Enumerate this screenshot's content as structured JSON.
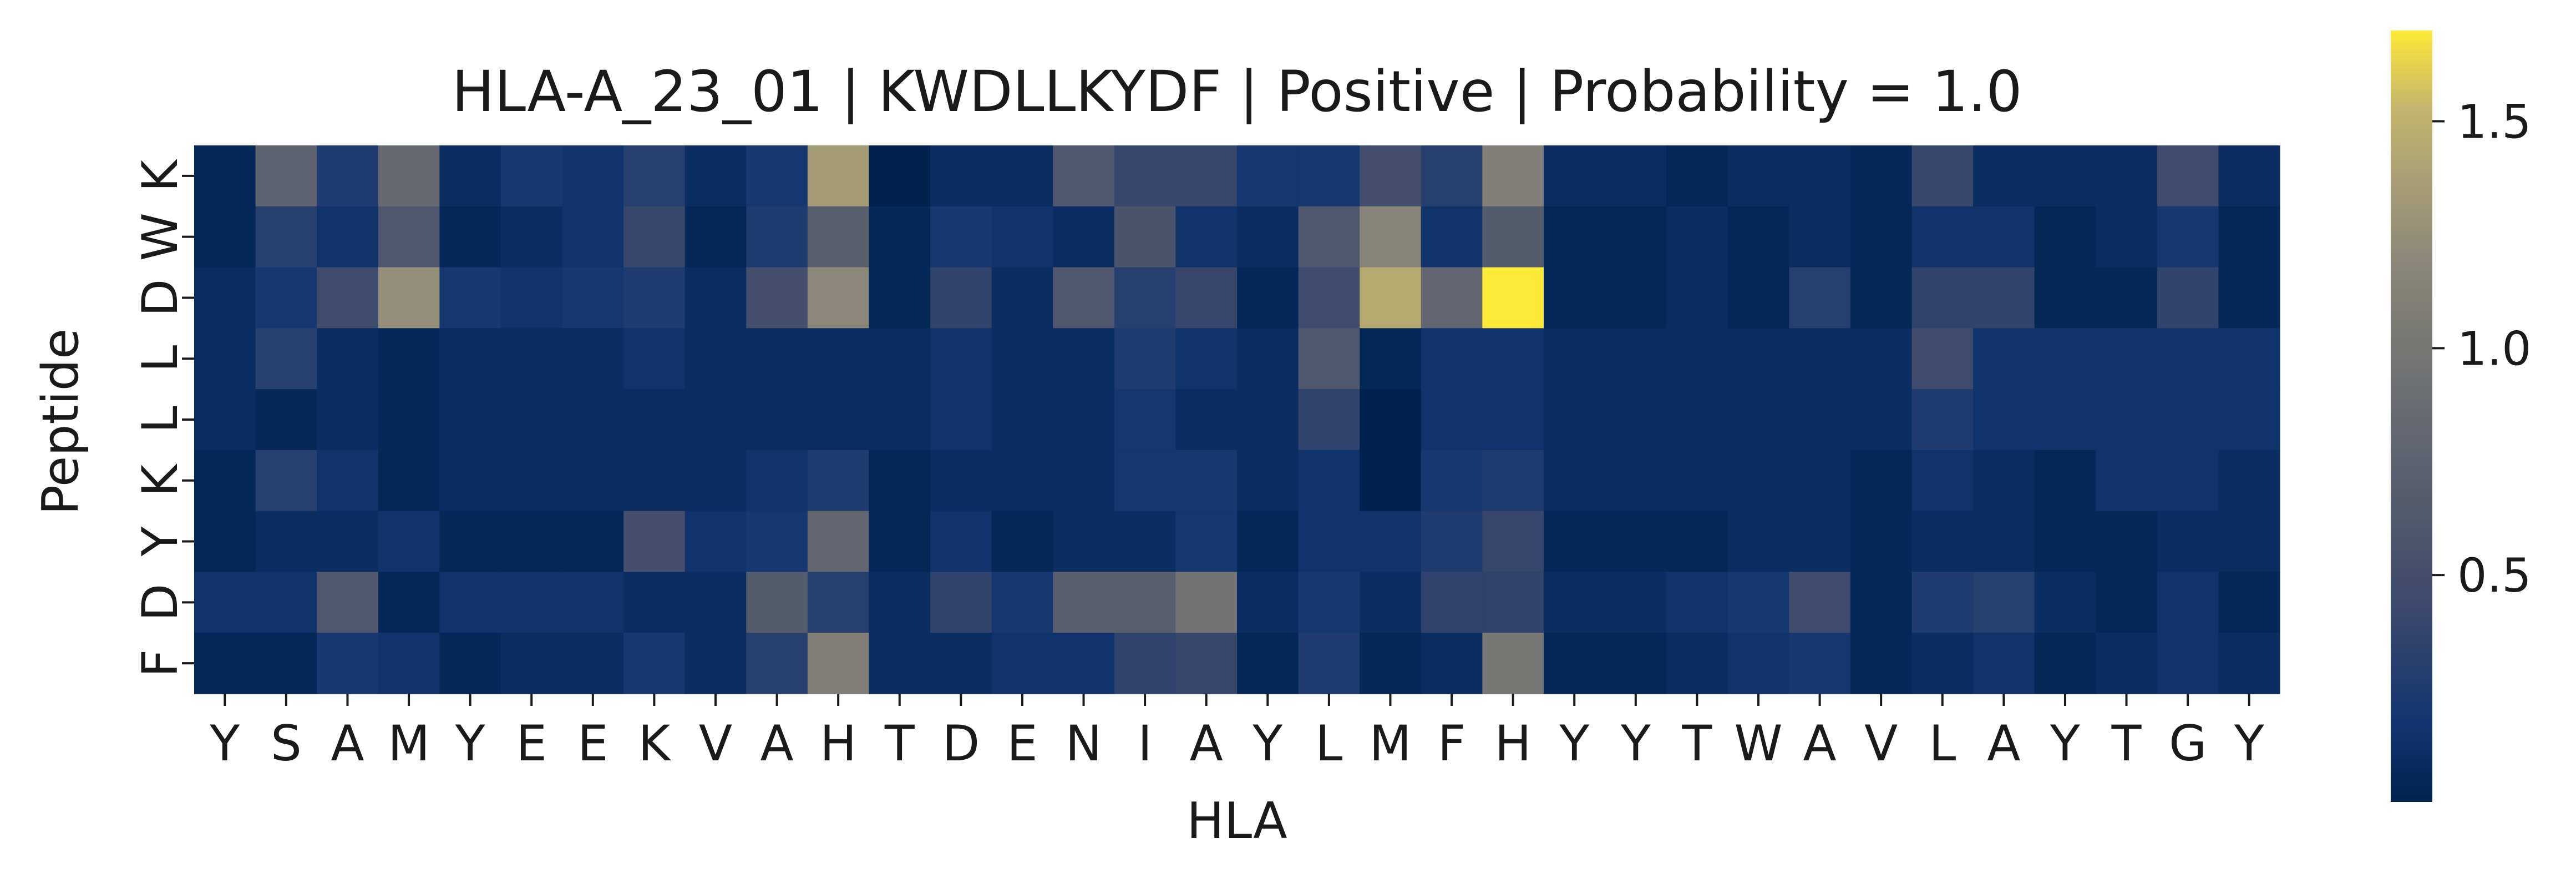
{
  "chart_data": {
    "type": "heatmap",
    "title": "HLA-A_23_01 | KWDLLKYDF | Positive | Probability = 1.0",
    "xlabel": "HLA",
    "ylabel": "Peptide",
    "x_categories": [
      "Y",
      "S",
      "A",
      "M",
      "Y",
      "E",
      "E",
      "K",
      "V",
      "A",
      "H",
      "T",
      "D",
      "E",
      "N",
      "I",
      "A",
      "Y",
      "L",
      "M",
      "F",
      "H",
      "Y",
      "Y",
      "T",
      "W",
      "A",
      "V",
      "L",
      "A",
      "Y",
      "T",
      "G",
      "Y"
    ],
    "y_categories": [
      "K",
      "W",
      "D",
      "L",
      "L",
      "K",
      "Y",
      "D",
      "F"
    ],
    "values": [
      [
        0.05,
        0.75,
        0.25,
        0.85,
        0.1,
        0.2,
        0.15,
        0.3,
        0.1,
        0.2,
        1.35,
        0.0,
        0.1,
        0.1,
        0.6,
        0.4,
        0.4,
        0.2,
        0.2,
        0.5,
        0.3,
        1.1,
        0.1,
        0.1,
        0.05,
        0.1,
        0.1,
        0.05,
        0.4,
        0.1,
        0.1,
        0.1,
        0.45,
        0.1
      ],
      [
        0.05,
        0.3,
        0.15,
        0.6,
        0.05,
        0.1,
        0.15,
        0.4,
        0.05,
        0.25,
        0.7,
        0.05,
        0.2,
        0.15,
        0.1,
        0.55,
        0.15,
        0.1,
        0.6,
        1.15,
        0.15,
        0.65,
        0.05,
        0.05,
        0.1,
        0.05,
        0.1,
        0.05,
        0.15,
        0.15,
        0.05,
        0.1,
        0.2,
        0.05
      ],
      [
        0.1,
        0.2,
        0.45,
        1.25,
        0.2,
        0.15,
        0.2,
        0.25,
        0.1,
        0.5,
        1.2,
        0.05,
        0.35,
        0.1,
        0.6,
        0.3,
        0.4,
        0.05,
        0.45,
        1.45,
        0.8,
        1.7,
        0.05,
        0.05,
        0.1,
        0.05,
        0.3,
        0.05,
        0.35,
        0.35,
        0.05,
        0.05,
        0.35,
        0.05
      ],
      [
        0.1,
        0.3,
        0.1,
        0.05,
        0.1,
        0.1,
        0.1,
        0.15,
        0.1,
        0.1,
        0.1,
        0.1,
        0.15,
        0.1,
        0.1,
        0.25,
        0.15,
        0.1,
        0.6,
        0.05,
        0.15,
        0.15,
        0.1,
        0.1,
        0.1,
        0.1,
        0.1,
        0.1,
        0.45,
        0.15,
        0.15,
        0.15,
        0.15,
        0.15
      ],
      [
        0.1,
        0.05,
        0.1,
        0.05,
        0.1,
        0.1,
        0.1,
        0.1,
        0.1,
        0.1,
        0.1,
        0.1,
        0.15,
        0.1,
        0.1,
        0.2,
        0.1,
        0.1,
        0.35,
        0.0,
        0.15,
        0.15,
        0.1,
        0.1,
        0.1,
        0.1,
        0.1,
        0.1,
        0.25,
        0.15,
        0.15,
        0.15,
        0.15,
        0.15
      ],
      [
        0.05,
        0.3,
        0.15,
        0.05,
        0.1,
        0.1,
        0.1,
        0.1,
        0.1,
        0.15,
        0.25,
        0.05,
        0.1,
        0.1,
        0.1,
        0.2,
        0.2,
        0.1,
        0.15,
        0.0,
        0.2,
        0.25,
        0.1,
        0.1,
        0.1,
        0.1,
        0.1,
        0.05,
        0.15,
        0.1,
        0.05,
        0.15,
        0.15,
        0.1
      ],
      [
        0.05,
        0.1,
        0.1,
        0.15,
        0.05,
        0.05,
        0.05,
        0.5,
        0.15,
        0.2,
        0.8,
        0.05,
        0.15,
        0.05,
        0.1,
        0.1,
        0.2,
        0.05,
        0.15,
        0.15,
        0.25,
        0.4,
        0.05,
        0.05,
        0.05,
        0.1,
        0.1,
        0.05,
        0.1,
        0.1,
        0.05,
        0.05,
        0.1,
        0.1
      ],
      [
        0.15,
        0.15,
        0.6,
        0.05,
        0.15,
        0.15,
        0.15,
        0.1,
        0.1,
        0.65,
        0.3,
        0.1,
        0.35,
        0.2,
        0.7,
        0.7,
        0.95,
        0.1,
        0.2,
        0.1,
        0.35,
        0.35,
        0.1,
        0.1,
        0.15,
        0.2,
        0.45,
        0.05,
        0.25,
        0.3,
        0.1,
        0.05,
        0.15,
        0.05
      ],
      [
        0.05,
        0.05,
        0.2,
        0.15,
        0.05,
        0.1,
        0.1,
        0.2,
        0.1,
        0.3,
        1.1,
        0.1,
        0.1,
        0.15,
        0.15,
        0.35,
        0.4,
        0.05,
        0.25,
        0.05,
        0.1,
        1.0,
        0.05,
        0.05,
        0.1,
        0.15,
        0.2,
        0.05,
        0.1,
        0.15,
        0.05,
        0.1,
        0.15,
        0.1
      ]
    ],
    "colormap": "cividis",
    "colorbar": {
      "vmin": 0.0,
      "vmax": 1.7,
      "ticks": [
        0.5,
        1.0,
        1.5
      ],
      "tick_labels": [
        "0.5",
        "1.0",
        "1.5"
      ]
    }
  }
}
